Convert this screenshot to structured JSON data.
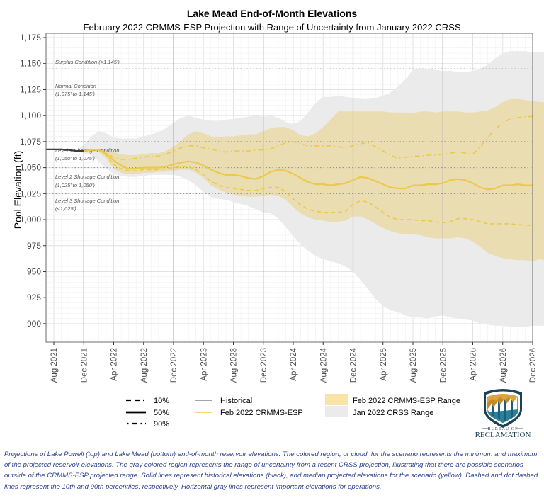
{
  "chart_data": {
    "type": "line",
    "title": "Lake Mead End-of-Month Elevations",
    "subtitle": "February 2022 CRMMS-ESP Projection with Range of Uncertainty from January 2022 CRSS",
    "xlabel": "",
    "ylabel": "Pool Elevation (ft)",
    "ylim": [
      882,
      1175
    ],
    "xlim": [
      "Jul 2021",
      "Dec 2026"
    ],
    "grid": true,
    "yticks": [
      900,
      925,
      950,
      975,
      1000,
      1025,
      1050,
      1075,
      1100,
      1125,
      1150,
      1175
    ],
    "ytick_labels": [
      "900",
      "925",
      "950",
      "975",
      "1,000",
      "1,025",
      "1,050",
      "1,075",
      "1,100",
      "1,125",
      "1,150",
      "1,175"
    ],
    "xtick_labels": [
      "Aug 2021",
      "Dec 2021",
      "Apr 2022",
      "Aug 2022",
      "Dec 2022",
      "Apr 2023",
      "Aug 2023",
      "Dec 2023",
      "Apr 2024",
      "Aug 2024",
      "Dec 2024",
      "Apr 2025",
      "Aug 2025",
      "Dec 2025",
      "Apr 2026",
      "Aug 2026",
      "Dec 2026"
    ],
    "x_months_start": "Aug 2021",
    "reference_lines": [
      {
        "value": 1145,
        "label": "Surplus Condition (>1,145')",
        "label2": ""
      },
      {
        "value": 1075,
        "label": "Normal Condition",
        "label2": "(1,075' to 1,145')"
      },
      {
        "value": 1050,
        "label": "Level 1 Shortage Condition",
        "label2": "(1,050' to 1,075')"
      },
      {
        "value": 1025,
        "label": "Level 2 Shortage Condition",
        "label2": "(1,025' to 1,050')"
      },
      {
        "value": 0,
        "label": "Level 3 Shortage Condition",
        "label2": "(<1,025')"
      }
    ],
    "year_lines": [
      "Dec 2021",
      "Dec 2022",
      "Dec 2023",
      "Dec 2024",
      "Dec 2025"
    ],
    "historical": {
      "name": "Historical",
      "start_month_index": -1,
      "values": [
        1067.5,
        1067.5,
        1067.5,
        1067,
        1066,
        1066
      ]
    },
    "series": [
      {
        "name": "50%",
        "scenario": "Feb 2022 CRMMS-ESP",
        "style": "solid",
        "start_month_index": 4,
        "values": [
          1066,
          1067,
          1067,
          1063,
          1057,
          1052,
          1049,
          1049,
          1050,
          1050,
          1050,
          1051,
          1053,
          1055,
          1056,
          1055,
          1052,
          1048,
          1045,
          1043,
          1043,
          1042,
          1040,
          1039,
          1042,
          1046,
          1048,
          1047,
          1044,
          1040,
          1036,
          1034,
          1034,
          1033,
          1034,
          1035,
          1038,
          1041,
          1040,
          1037,
          1034,
          1031,
          1030,
          1030,
          1033,
          1033,
          1034,
          1034,
          1035,
          1038,
          1039,
          1038,
          1035,
          1031,
          1029,
          1030,
          1033,
          1033,
          1034,
          1033,
          1033
        ]
      },
      {
        "name": "10%",
        "scenario": "Feb 2022 CRMMS-ESP",
        "style": "dashed",
        "start_month_index": 4,
        "values": [
          1066,
          1067,
          1067,
          1062,
          1053,
          1049,
          1047,
          1047,
          1048,
          1048,
          1048,
          1049,
          1050,
          1051,
          1051,
          1048,
          1043,
          1037,
          1033,
          1031,
          1030,
          1029,
          1028,
          1028,
          1030,
          1031,
          1031,
          1027,
          1020,
          1014,
          1010,
          1008,
          1007,
          1007,
          1007,
          1008,
          1015,
          1018,
          1017,
          1012,
          1007,
          1002,
          1000,
          1000,
          1000,
          999,
          999,
          998,
          997,
          998,
          1001,
          1001,
          1000,
          998,
          996,
          996,
          996,
          996,
          995,
          995,
          994
        ]
      },
      {
        "name": "90%",
        "scenario": "Feb 2022 CRMMS-ESP",
        "style": "dotdash",
        "start_month_index": 4,
        "values": [
          1066,
          1067,
          1067,
          1064,
          1060,
          1058,
          1058,
          1059,
          1060,
          1061,
          1061,
          1063,
          1066,
          1069,
          1071,
          1071,
          1069,
          1068,
          1066,
          1065,
          1066,
          1066,
          1066,
          1067,
          1067,
          1068,
          1071,
          1074,
          1075,
          1073,
          1071,
          1071,
          1071,
          1071,
          1070,
          1069,
          1071,
          1073,
          1074,
          1070,
          1066,
          1062,
          1059,
          1060,
          1061,
          1061,
          1062,
          1062,
          1063,
          1064,
          1065,
          1064,
          1063,
          1070,
          1079,
          1087,
          1093,
          1097,
          1098,
          1099,
          1099
        ]
      }
    ],
    "ranges": [
      {
        "name": "Feb 2022 CRMMS-ESP Range",
        "color": "#f3dfa0",
        "start_month_index": 4,
        "max": [
          1066,
          1068,
          1068,
          1067,
          1065,
          1063,
          1062,
          1062,
          1063,
          1064,
          1064,
          1066,
          1070,
          1076,
          1082,
          1085,
          1083,
          1080,
          1079,
          1080,
          1080,
          1081,
          1082,
          1082,
          1085,
          1088,
          1089,
          1089,
          1086,
          1081,
          1080,
          1083,
          1089,
          1096,
          1104,
          1104,
          1104,
          1104,
          1104,
          1104,
          1104,
          1103,
          1103,
          1103,
          1102,
          1104,
          1104,
          1103,
          1104,
          1104,
          1104,
          1103,
          1103,
          1104,
          1105,
          1108,
          1113,
          1116,
          1116,
          1115,
          1114,
          1113,
          1113,
          1112,
          1112
        ],
        "min": [
          1066,
          1066,
          1065,
          1059,
          1049,
          1045,
          1044,
          1044,
          1045,
          1045,
          1046,
          1046,
          1047,
          1048,
          1048,
          1045,
          1040,
          1033,
          1029,
          1026,
          1024,
          1023,
          1022,
          1022,
          1023,
          1024,
          1023,
          1019,
          1012,
          1006,
          1002,
          1000,
          999,
          998,
          998,
          999,
          1003,
          1003,
          1000,
          996,
          992,
          989,
          987,
          986,
          986,
          985,
          983,
          982,
          982,
          982,
          983,
          982,
          979,
          974,
          968,
          965,
          963,
          962,
          961,
          961,
          960,
          962,
          960,
          960,
          960
        ]
      },
      {
        "name": "Jan 2022 CRSS Range",
        "color": "#ebebeb",
        "start_month_index": 3,
        "max": [
          1066,
          1072,
          1080,
          1085,
          1083,
          1079,
          1078,
          1078,
          1078,
          1080,
          1082,
          1084,
          1088,
          1093,
          1098,
          1100,
          1098,
          1096,
          1095,
          1095,
          1096,
          1097,
          1098,
          1099,
          1100,
          1099,
          1100,
          1098,
          1094,
          1092,
          1095,
          1103,
          1112,
          1118,
          1118,
          1119,
          1118,
          1117,
          1116,
          1116,
          1117,
          1119,
          1122,
          1128,
          1135,
          1144,
          1145,
          1145,
          1144,
          1143,
          1143,
          1142,
          1142,
          1143,
          1145,
          1149,
          1155,
          1160,
          1162,
          1162,
          1162,
          1161,
          1161,
          1160,
          1160,
          1160
        ],
        "min": [
          1066,
          1064,
          1062,
          1056,
          1049,
          1044,
          1042,
          1041,
          1041,
          1042,
          1043,
          1043,
          1043,
          1043,
          1041,
          1038,
          1033,
          1027,
          1022,
          1020,
          1019,
          1017,
          1015,
          1013,
          1010,
          1007,
          1006,
          1001,
          993,
          984,
          976,
          970,
          965,
          962,
          960,
          958,
          955,
          950,
          942,
          933,
          924,
          917,
          913,
          911,
          908,
          906,
          906,
          905,
          907,
          908,
          906,
          905,
          904,
          903,
          900,
          899,
          898,
          898,
          897,
          897,
          897,
          898,
          898,
          898,
          898,
          899
        ]
      }
    ],
    "legend": {
      "percentiles": [
        {
          "label": "10%",
          "style": "dashed"
        },
        {
          "label": "50%",
          "style": "solid"
        },
        {
          "label": "90%",
          "style": "dotdash"
        }
      ],
      "lines": [
        {
          "label": "Historical",
          "color": "#555555"
        },
        {
          "label": "Feb 2022 CRMMS-ESP",
          "color": "#f2c11c"
        }
      ],
      "fills": [
        {
          "label": "Feb 2022 CRMMS-ESP Range",
          "color": "#f7e4a6"
        },
        {
          "label": "Jan 2022 CRSS Range",
          "color": "#ebebeb"
        }
      ],
      "placement": "bottom"
    },
    "colors": {
      "historical": "#3d3d3d",
      "esp_line": "#ebc94a",
      "esp_band": "#e9d9a4",
      "crss_band": "#ebebeb"
    }
  },
  "logo": {
    "line1": "BUREAU OF",
    "line2": "RECLAMATION"
  },
  "caption": "Projections of Lake Powell (top) and Lake Mead (bottom) end-of-month reservoir elevations. The colored region, or cloud, for the scenario represents the minimum and maximum of the projected reservoir elevations. The gray colored region represents the range of uncertainty from a recent CRSS projection, illustrating that there are possible scenarios outside of the CRMMS-ESP projected range. Solid lines represent historical elevations (black), and median projected elevations for the scenario (yellow). Dashed and dot dashed lines represent the 10th and 90th percentiles, respectively. Horizontal gray lines represent important elevations for operations."
}
